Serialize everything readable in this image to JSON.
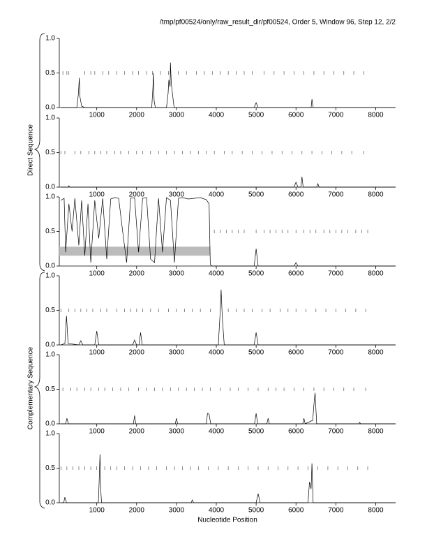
{
  "header": {
    "title": "/tmp/pf00524/only/raw_result_dir/pf00524, Order 5, Window 96, Step 12, 2/2"
  },
  "groups": [
    "Direct Sequence",
    "Complementary Sequence"
  ],
  "x_label": "Nucleotide Position",
  "chart_data": [
    {
      "type": "line",
      "color": "#000000",
      "xlim": [
        60,
        8500
      ],
      "ylim": [
        0,
        1
      ],
      "yticks": [
        {
          "value": 0,
          "label": "0.0"
        },
        {
          "value": 0.5,
          "label": "0.5"
        },
        {
          "value": 1,
          "label": "1.0"
        }
      ],
      "xticks": [
        1000,
        2000,
        3000,
        4000,
        5000,
        6000,
        7000,
        8000
      ],
      "x": [
        100,
        500,
        540,
        560,
        580,
        620,
        700,
        2380,
        2410,
        2420,
        2440,
        2470,
        2750,
        2790,
        2810,
        2840,
        2850,
        2870,
        2900,
        2940,
        4950,
        5000,
        5050,
        6380,
        6400,
        6430,
        8500
      ],
      "values": [
        0,
        0,
        0.2,
        0.43,
        0.15,
        0.02,
        0,
        0,
        0.3,
        0.5,
        0.1,
        0,
        0,
        0.2,
        0.4,
        0.3,
        0.65,
        0.35,
        0.2,
        0,
        0,
        0.07,
        0,
        0,
        0.12,
        0,
        0
      ],
      "stops": [
        150,
        250,
        300,
        700,
        850,
        950,
        1150,
        1300,
        1500,
        1700,
        1900,
        2050,
        2250,
        2400,
        2600,
        2800,
        3050,
        3250,
        3500,
        3700,
        3900,
        4100,
        4300,
        4500,
        4700,
        4900,
        5200,
        5450,
        5700,
        5950,
        6200,
        6450,
        6700,
        6950,
        7200,
        7450,
        7700
      ]
    },
    {
      "type": "line",
      "color": "#000000",
      "xlim": [
        60,
        8500
      ],
      "ylim": [
        0,
        1
      ],
      "yticks": [
        {
          "value": 0,
          "label": "0.0"
        },
        {
          "value": 0.5,
          "label": "0.5"
        },
        {
          "value": 1,
          "label": "1.0"
        }
      ],
      "xticks": [
        1000,
        2000,
        3000,
        4000,
        5000,
        6000,
        7000,
        8000
      ],
      "x": [
        100,
        280,
        300,
        320,
        5950,
        6000,
        6050,
        6120,
        6150,
        6180,
        6520,
        6550,
        6580,
        8500
      ],
      "values": [
        0,
        0,
        0.02,
        0,
        0,
        0.07,
        0,
        0,
        0.15,
        0,
        0,
        0.05,
        0,
        0
      ],
      "stops": [
        100,
        200,
        450,
        600,
        800,
        950,
        1100,
        1250,
        1450,
        1600,
        1800,
        2000,
        2150,
        2350,
        2550,
        2750,
        2950,
        3150,
        3350,
        3550,
        3750,
        3950,
        4200,
        4400,
        4650,
        4900,
        5150,
        5400,
        5650,
        5900,
        6150,
        6400,
        6650,
        6900,
        7150,
        7400,
        7700
      ]
    },
    {
      "type": "line",
      "color": "#000000",
      "xlim": [
        60,
        8500
      ],
      "ylim": [
        0,
        1
      ],
      "yticks": [
        {
          "value": 0,
          "label": "0.0"
        },
        {
          "value": 0.5,
          "label": "0.5"
        },
        {
          "value": 1,
          "label": "1.0"
        }
      ],
      "xticks": [
        1000,
        2000,
        3000,
        4000,
        5000,
        6000,
        7000,
        8000
      ],
      "x": [
        100,
        180,
        220,
        300,
        380,
        450,
        550,
        620,
        700,
        780,
        850,
        950,
        1050,
        1150,
        1250,
        1350,
        1450,
        1550,
        1650,
        1750,
        1850,
        1950,
        2050,
        2150,
        2250,
        2350,
        2450,
        2550,
        2650,
        2750,
        2850,
        2950,
        3050,
        3150,
        3300,
        3450,
        3600,
        3750,
        3820,
        3850,
        3900,
        4950,
        5000,
        5050,
        5950,
        6000,
        6050,
        8500
      ],
      "values": [
        0.95,
        0.98,
        0.2,
        0.9,
        0.5,
        0.98,
        0.3,
        0.95,
        0.15,
        0.9,
        0.05,
        0.95,
        0.4,
        0.98,
        0.1,
        0.97,
        0.99,
        0.98,
        0.5,
        0.05,
        0.98,
        0.99,
        0.2,
        0.98,
        0.99,
        0.1,
        0.05,
        0.98,
        0.2,
        0.99,
        0.95,
        0.05,
        0.98,
        0.99,
        0.97,
        0.98,
        0.99,
        0.96,
        0.9,
        0.02,
        0,
        0,
        0.25,
        0,
        0,
        0.05,
        0,
        0
      ],
      "stops": [
        3950,
        4100,
        4250,
        4400,
        4550,
        4700,
        5000,
        5200,
        5350,
        5500,
        5650,
        5800,
        6000,
        6200,
        6350,
        6500,
        6700,
        6850,
        7000,
        7150,
        7300,
        7500,
        7650,
        7800
      ],
      "band": {
        "x": [
          60,
          3850
        ],
        "y": [
          0.15,
          0.28
        ]
      }
    },
    {
      "type": "line",
      "color": "#000000",
      "xlim": [
        60,
        8500
      ],
      "ylim": [
        0,
        1
      ],
      "yticks": [
        {
          "value": 0,
          "label": "0.0"
        },
        {
          "value": 0.5,
          "label": "0.5"
        },
        {
          "value": 1,
          "label": "1.0"
        }
      ],
      "xticks": [
        1000,
        2000,
        3000,
        4000,
        5000,
        6000,
        7000,
        8000
      ],
      "x": [
        100,
        200,
        240,
        280,
        550,
        600,
        650,
        950,
        1000,
        1050,
        1900,
        1950,
        2000,
        2060,
        2100,
        2140,
        4050,
        4100,
        4120,
        4150,
        4200,
        4950,
        5000,
        5050,
        8500
      ],
      "values": [
        0,
        0.02,
        0.42,
        0.02,
        0,
        0.06,
        0,
        0,
        0.2,
        0,
        0,
        0.07,
        0,
        0,
        0.18,
        0,
        0,
        0.5,
        0.8,
        0.4,
        0,
        0,
        0.18,
        0,
        0
      ],
      "stops": [
        100,
        300,
        450,
        600,
        750,
        900,
        1100,
        1250,
        1500,
        1700,
        1850,
        2000,
        2150,
        2350,
        2550,
        2800,
        3000,
        3200,
        3400,
        3600,
        3850,
        4300,
        4500,
        4700,
        4900,
        5150,
        5350,
        5600,
        5800,
        6000,
        6250,
        6500,
        6750,
        7000,
        7250,
        7500,
        7750
      ]
    },
    {
      "type": "line",
      "color": "#000000",
      "xlim": [
        60,
        8500
      ],
      "ylim": [
        0,
        1
      ],
      "yticks": [
        {
          "value": 0,
          "label": "0.0"
        },
        {
          "value": 0.5,
          "label": "0.5"
        },
        {
          "value": 1,
          "label": "1.0"
        }
      ],
      "xticks": [
        1000,
        2000,
        3000,
        4000,
        5000,
        6000,
        7000,
        8000
      ],
      "x": [
        100,
        220,
        250,
        290,
        1920,
        1950,
        1980,
        2970,
        3000,
        3030,
        3750,
        3780,
        3820,
        3860,
        4960,
        5000,
        5040,
        5270,
        5300,
        5330,
        6170,
        6200,
        6230,
        6420,
        6460,
        6480,
        6520,
        7580,
        7600,
        7620,
        8500
      ],
      "values": [
        0,
        0,
        0.08,
        0,
        0,
        0.12,
        0,
        0,
        0.08,
        0,
        0,
        0.15,
        0.14,
        0,
        0,
        0.15,
        0,
        0,
        0.08,
        0,
        0,
        0.08,
        0,
        0.05,
        0.35,
        0.45,
        0,
        0,
        0.02,
        0,
        0
      ],
      "stops": [
        150,
        350,
        500,
        700,
        850,
        1050,
        1200,
        1400,
        1600,
        1800,
        2050,
        2250,
        2450,
        2650,
        2850,
        3050,
        3250,
        3450,
        3650,
        3850,
        4100,
        4350,
        4550,
        4800,
        5050,
        5300,
        5500,
        5700,
        5950,
        6200,
        6450,
        6700,
        6950,
        7200,
        7450,
        7750
      ]
    },
    {
      "type": "line",
      "color": "#000000",
      "xlim": [
        60,
        8500
      ],
      "ylim": [
        0,
        1
      ],
      "yticks": [
        {
          "value": 0,
          "label": "0.0"
        },
        {
          "value": 0.5,
          "label": "0.5"
        },
        {
          "value": 1,
          "label": "1.0"
        }
      ],
      "xticks": [
        1000,
        2000,
        3000,
        4000,
        5000,
        6000,
        7000,
        8000
      ],
      "x": [
        100,
        170,
        200,
        240,
        1040,
        1060,
        1080,
        1100,
        1120,
        3370,
        3400,
        3430,
        5000,
        5050,
        5100,
        6300,
        6340,
        6380,
        6400,
        6430,
        8500
      ],
      "values": [
        0,
        0,
        0.08,
        0,
        0,
        0.3,
        0.7,
        0.2,
        0,
        0,
        0.04,
        0,
        0,
        0.13,
        0,
        0,
        0.3,
        0.2,
        0.57,
        0,
        0
      ],
      "stops": [
        100,
        250,
        400,
        550,
        700,
        850,
        1000,
        1200,
        1350,
        1500,
        1700,
        1900,
        2100,
        2300,
        2500,
        2750,
        2950,
        3150,
        3350,
        3550,
        3800,
        4050,
        4300,
        4550,
        4800,
        5050,
        5300,
        5550,
        5800,
        6050,
        6300,
        6550,
        6800,
        7050,
        7300,
        7550,
        7800
      ]
    }
  ]
}
